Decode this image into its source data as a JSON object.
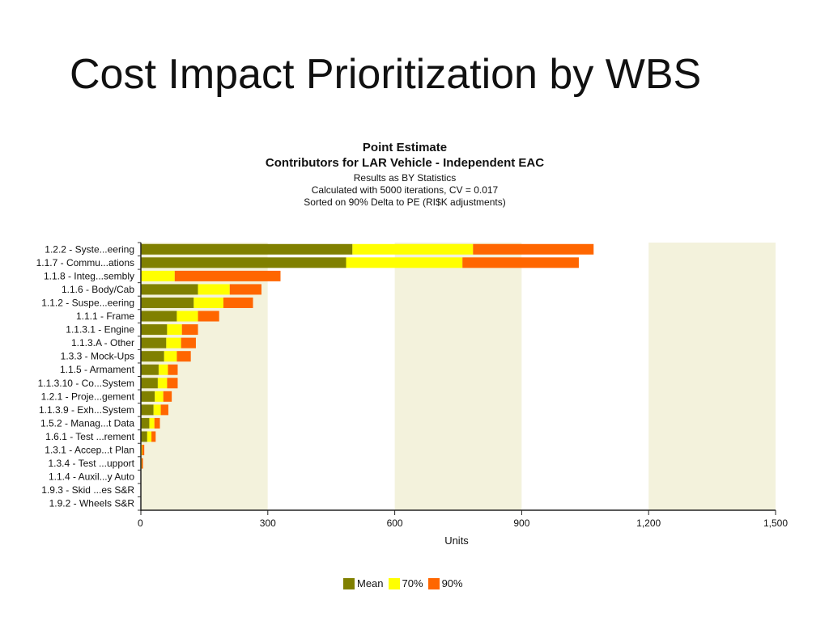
{
  "slide": {
    "title": "Cost Impact Prioritization by WBS"
  },
  "chart_data": {
    "type": "bar",
    "orientation": "horizontal",
    "stacked": true,
    "title": "Point Estimate",
    "subtitle": "Contributors for LAR Vehicle - Independent EAC",
    "notes": [
      "Results as BY Statistics",
      "Calculated with 5000 iterations, CV = 0.017",
      "Sorted on 90% Delta to PE (RI$K adjustments)"
    ],
    "xlabel": "Units",
    "ylabel": "",
    "xlim": [
      0,
      1500
    ],
    "xticks": [
      0,
      300,
      600,
      900,
      1200,
      1500
    ],
    "xtick_labels": [
      "0",
      "300",
      "600",
      "900",
      "1,200",
      "1,500"
    ],
    "categories": [
      "1.2.2 - Syste...eering",
      "1.1.7 - Commu...ations",
      "1.1.8 - Integ...sembly",
      "1.1.6 - Body/Cab",
      "1.1.2 - Suspe...eering",
      "1.1.1 - Frame",
      "1.1.3.1 - Engine",
      "1.1.3.A - Other",
      "1.3.3 - Mock-Ups",
      "1.1.5 - Armament",
      "1.1.3.10 - Co...System",
      "1.2.1 - Proje...gement",
      "1.1.3.9 - Exh...System",
      "1.5.2 - Manag...t Data",
      "1.6.1 - Test ...rement",
      "1.3.1 - Accep...t Plan",
      "1.3.4 - Test ...upport",
      "1.1.4 - Auxil...y Auto",
      "1.9.3 - Skid ...es S&R",
      "1.9.2 - Wheels S&R"
    ],
    "series": [
      {
        "name": "Mean",
        "color": "#808000",
        "values": [
          500,
          485,
          0,
          135,
          125,
          85,
          62,
          60,
          55,
          42,
          40,
          33,
          30,
          20,
          15,
          0,
          0,
          0,
          0,
          0
        ]
      },
      {
        "name": "70%",
        "color": "#ffff00",
        "values": [
          285,
          275,
          80,
          75,
          70,
          50,
          35,
          35,
          30,
          22,
          22,
          20,
          17,
          12,
          10,
          3,
          2,
          0,
          0,
          0
        ]
      },
      {
        "name": "90%",
        "color": "#ff6600",
        "values": [
          285,
          275,
          250,
          75,
          70,
          50,
          38,
          35,
          33,
          23,
          25,
          20,
          18,
          13,
          10,
          5,
          3,
          0,
          0,
          0
        ]
      }
    ],
    "band_colors": [
      "#f3f2dc",
      "#ffffff"
    ],
    "legend_position": "bottom"
  }
}
